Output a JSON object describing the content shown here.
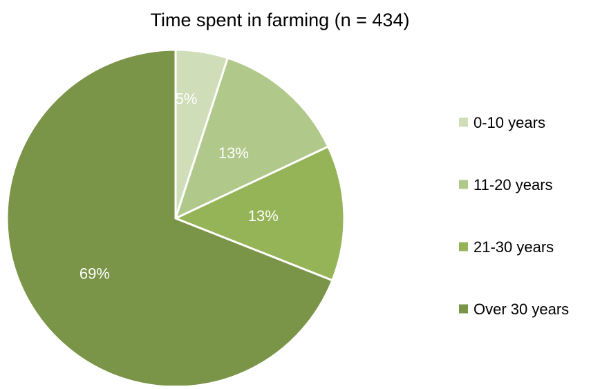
{
  "chart_data": {
    "type": "pie",
    "title": "Time spent in farming (n = 434)",
    "categories": [
      "0-10 years",
      "11-20 years",
      "21-30 years",
      "Over 30 years"
    ],
    "values": [
      5,
      13,
      13,
      69
    ],
    "labels": [
      "5%",
      "13%",
      "13%",
      "69%"
    ],
    "colors": [
      "#cfddb8",
      "#b0c98a",
      "#95b458",
      "#7a9448"
    ],
    "legend_position": "right",
    "start_angle_deg": 0,
    "direction": "clockwise"
  }
}
